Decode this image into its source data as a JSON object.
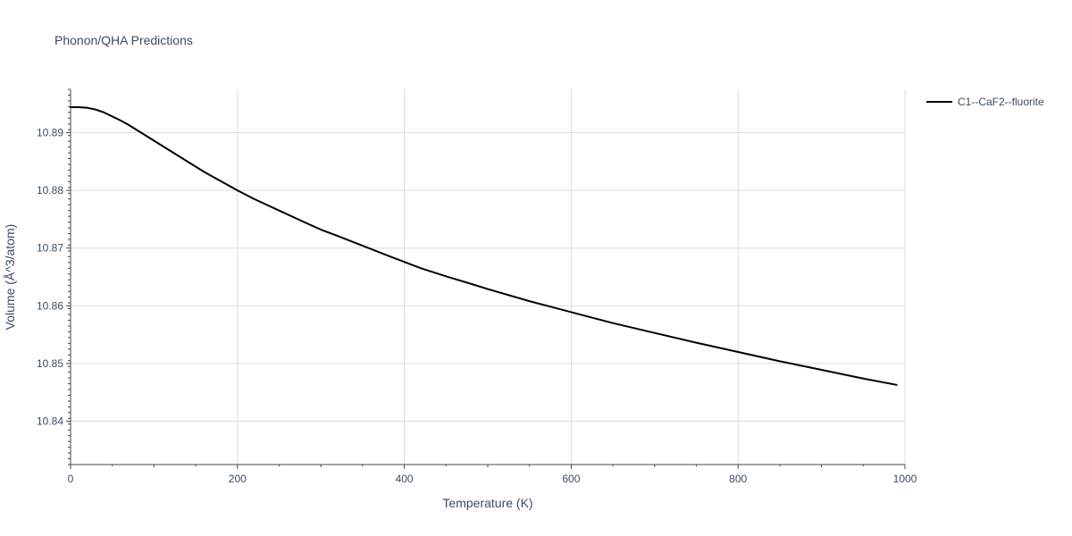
{
  "chart_data": {
    "type": "line",
    "title": "Phonon/QHA Predictions",
    "xlabel": "Temperature (K)",
    "ylabel": "Volume (Å^3/atom)",
    "xlim": [
      0,
      1000
    ],
    "ylim": [
      10.8325,
      10.8975
    ],
    "x_ticks": [
      0,
      200,
      400,
      600,
      800,
      1000
    ],
    "y_ticks": [
      10.84,
      10.85,
      10.86,
      10.87,
      10.88,
      10.89
    ],
    "x_tick_labels": [
      "0",
      "200",
      "400",
      "600",
      "800",
      "1000"
    ],
    "y_tick_labels": [
      "10.84",
      "10.85",
      "10.86",
      "10.87",
      "10.88",
      "10.89"
    ],
    "grid": true,
    "legend_position": "top-right",
    "series": [
      {
        "name": "C1--CaF2--fluorite",
        "color": "#000000",
        "x": [
          0,
          10,
          20,
          30,
          40,
          50,
          60,
          70,
          80,
          100,
          120,
          140,
          160,
          180,
          200,
          220,
          250,
          280,
          300,
          320,
          350,
          380,
          400,
          420,
          450,
          480,
          500,
          550,
          600,
          650,
          700,
          750,
          800,
          850,
          900,
          950,
          990
        ],
        "y": [
          10.8944,
          10.8944,
          10.8943,
          10.894,
          10.8935,
          10.8928,
          10.8921,
          10.8913,
          10.8904,
          10.8886,
          10.8868,
          10.885,
          10.8832,
          10.8816,
          10.88,
          10.8785,
          10.8765,
          10.8745,
          10.8732,
          10.8721,
          10.8704,
          10.8687,
          10.8676,
          10.8665,
          10.8651,
          10.8638,
          10.8629,
          10.8608,
          10.8589,
          10.857,
          10.8553,
          10.8536,
          10.852,
          10.8504,
          10.8489,
          10.8474,
          10.8463
        ]
      }
    ]
  }
}
